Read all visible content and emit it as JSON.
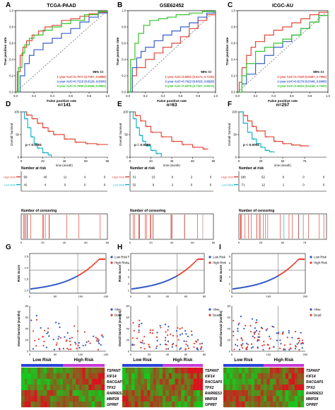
{
  "colors": {
    "year1": "#e0483a",
    "year2": "#3a5fc8",
    "year3": "#35c42c",
    "high_risk": "#e0483a",
    "low_risk": "#19b6c9",
    "low_risk_dot": "#2a53c4",
    "dead_dot": "#e23a2a",
    "heat_low": "#1cc81c",
    "heat_high": "#d81c1c",
    "bar_low": "#2a44d8",
    "bar_high": "#c83ad8"
  },
  "roc_panels": [
    {
      "letter": "A",
      "title": "TCGA-PAAD",
      "xlabel": "False positive rate",
      "ylabel": "True positive rate",
      "ci_header": "95% CI",
      "ticks": [
        "0.0",
        "0.2",
        "0.4",
        "0.6",
        "0.8",
        "1.0"
      ],
      "auc": [
        "1-year AUC=0.7977 (0.7067, 0.8888)",
        "2-year AUC=0.7215 (0.6129, 0.8300)",
        "3-year AUC=0.7699 (0.6546, 0.8851)"
      ]
    },
    {
      "letter": "B",
      "title": "GSE62452",
      "xlabel": "False positive rate",
      "ylabel": "True positive rate",
      "ci_header": "95% CI",
      "ticks": [
        "0.0",
        "0.2",
        "0.4",
        "0.6",
        "0.8",
        "1.0"
      ],
      "auc": [
        "1-year AUC=0.6691 (0.4171, 0.7215)",
        "2-year AUC=0.7422 (0.6015, 0.8829)",
        "3-year AUC=0.8379 (0.7227, 0.9574)"
      ]
    },
    {
      "letter": "C",
      "title": "ICGC-AU",
      "xlabel": "False positive rate",
      "ylabel": "True positive rate",
      "ci_header": "95% CI",
      "ticks": [
        "0.0",
        "0.2",
        "0.4",
        "0.6",
        "0.8",
        "1.0"
      ],
      "auc": [
        "1-year AUC=0.7240 (0.6487, 0.7994)",
        "2-year AUC=0.6170 (0.5346, 0.6995)",
        "3-year AUC=0.6424 (0.5246, 0.7600)"
      ]
    }
  ],
  "km_panels": [
    {
      "letter": "D",
      "n_label": "n=141",
      "ylabel": "Overall Survival",
      "xlabel": "time (month)",
      "p_label": "p < 0.0001",
      "x_ticks": [
        "0",
        "20",
        "40",
        "60",
        "80"
      ],
      "y_ticks": [
        "0",
        "50",
        "100"
      ],
      "risk_title": "Number at risk",
      "risk_groups": [
        "High Risk",
        "Low Risk"
      ],
      "risk_high": [
        "99",
        "40",
        "11",
        "4",
        "0"
      ],
      "risk_low": [
        "42",
        "4",
        "0",
        "0",
        "0"
      ],
      "censor_title": "Number of censoring",
      "censor_x_ticks": [
        "0",
        "20",
        "40",
        "60",
        "80"
      ]
    },
    {
      "letter": "E",
      "n_label": "n=63",
      "ylabel": "Overall Survival",
      "xlabel": "time (month)",
      "p_label": "p = 0.0089",
      "x_ticks": [
        "0",
        "20",
        "40",
        "60",
        "80"
      ],
      "y_ticks": [
        "0",
        "50",
        "100"
      ],
      "risk_title": "Number at risk",
      "risk_groups": [
        "High Risk",
        "Low Risk"
      ],
      "risk_high": [
        "31",
        "15",
        "6",
        "2",
        "0"
      ],
      "risk_low": [
        "32",
        "9",
        "2",
        "0",
        "0"
      ],
      "censor_title": "Number of censoring",
      "censor_x_ticks": [
        "0",
        "20",
        "40",
        "60",
        "80"
      ]
    },
    {
      "letter": "F",
      "n_label": "n=257",
      "ylabel": "Overall Survival",
      "xlabel": "time (month)",
      "p_label": "p < 0.0001",
      "x_ticks": [
        "0",
        "25",
        "50",
        "75"
      ],
      "y_ticks": [
        "0",
        "50",
        "100"
      ],
      "risk_title": "Number at risk",
      "risk_groups": [
        "High Risk",
        "Low Risk"
      ],
      "risk_high": [
        "186",
        "52",
        "6",
        "0",
        "0"
      ],
      "risk_low": [
        "71",
        "12",
        "1",
        "0",
        "0"
      ],
      "censor_title": "Number of censoring",
      "censor_x_ticks": [
        "0",
        "25",
        "50",
        "75"
      ]
    }
  ],
  "risk_panels": [
    {
      "letter": "G",
      "score_label": "Risk Score",
      "os_label": "Overall Survival (months)",
      "legend_score": [
        "Low Risk",
        "High Risk"
      ],
      "legend_os": [
        "Alive",
        "Dead"
      ],
      "x_ticks": [
        "0",
        "50",
        "100",
        "150"
      ],
      "score_ticks": [
        "1.0",
        "1.5",
        "2.0",
        "2.5"
      ],
      "os_ticks": [
        "0",
        "20",
        "40",
        "60",
        "80"
      ],
      "bar_labels": [
        "Low Risk",
        "High Risk"
      ],
      "genes": [
        "TSPAN7",
        "KIF14",
        "RACGAP1",
        "TPX2",
        "RARRES3",
        "MMP28",
        "GPR87"
      ]
    },
    {
      "letter": "H",
      "score_label": "Risk Score",
      "os_label": "Overall Survival (months)",
      "legend_score": [
        "Low Risk",
        "High Risk"
      ],
      "legend_os": [
        "Alive",
        "Dead"
      ],
      "x_ticks": [
        "0",
        "20",
        "40",
        "60",
        "80"
      ],
      "score_ticks": [
        "1",
        "2",
        "3",
        "4",
        "5",
        "6"
      ],
      "os_ticks": [
        "0",
        "20",
        "40",
        "60",
        "80"
      ],
      "bar_labels": [
        "Low Risk",
        "High Risk"
      ],
      "genes": [
        "TSPAN7",
        "KIF14",
        "RACGAP1",
        "TPX2",
        "RARRES3",
        "MMP28",
        "GPR87"
      ]
    },
    {
      "letter": "I",
      "score_label": "Risk Score",
      "os_label": "Overall Survival (months)",
      "legend_score": [
        "Low Risk",
        "High Risk"
      ],
      "legend_os": [
        "Alive",
        "Dead"
      ],
      "x_ticks": [
        "0",
        "100",
        "200"
      ],
      "score_ticks": [
        "1",
        "2",
        "3",
        "4",
        "5",
        "6"
      ],
      "os_ticks": [
        "0",
        "20",
        "40",
        "60",
        "80"
      ],
      "bar_labels": [
        "Low Risk",
        "High Risk"
      ],
      "genes": [
        "TSPAN7",
        "KIF14",
        "RACGAP1",
        "TPX2",
        "RARRES3",
        "MMP28",
        "GPR87"
      ]
    }
  ],
  "chart_data": [
    {
      "type": "line",
      "panel": "A",
      "title": "TCGA-PAAD",
      "xlabel": "False positive rate",
      "ylabel": "True positive rate",
      "xlim": [
        0,
        1
      ],
      "ylim": [
        0,
        1
      ],
      "series": [
        {
          "name": "1-year AUC=0.7977 (0.7067, 0.8888)",
          "x": [
            0,
            0.02,
            0.05,
            0.08,
            0.12,
            0.18,
            0.25,
            0.32,
            0.4,
            0.5,
            0.6,
            0.7,
            0.8,
            0.9,
            1.0
          ],
          "y": [
            0,
            0.25,
            0.45,
            0.55,
            0.63,
            0.7,
            0.75,
            0.8,
            0.82,
            0.88,
            0.9,
            0.93,
            0.96,
            0.98,
            1.0
          ]
        },
        {
          "name": "2-year AUC=0.7215 (0.6129, 0.8300)",
          "x": [
            0,
            0.05,
            0.1,
            0.15,
            0.2,
            0.3,
            0.4,
            0.5,
            0.6,
            0.7,
            0.8,
            0.9,
            1.0
          ],
          "y": [
            0,
            0.2,
            0.35,
            0.45,
            0.52,
            0.6,
            0.66,
            0.72,
            0.78,
            0.86,
            0.92,
            0.97,
            1.0
          ]
        },
        {
          "name": "3-year AUC=0.7699 (0.6546, 0.8851)",
          "x": [
            0,
            0.03,
            0.07,
            0.1,
            0.15,
            0.2,
            0.3,
            0.4,
            0.5,
            0.6,
            0.75,
            0.9,
            1.0
          ],
          "y": [
            0,
            0.3,
            0.48,
            0.58,
            0.66,
            0.7,
            0.76,
            0.8,
            0.84,
            0.88,
            0.95,
            0.99,
            1.0
          ]
        }
      ]
    },
    {
      "type": "line",
      "panel": "B",
      "title": "GSE62452",
      "xlabel": "False positive rate",
      "ylabel": "True positive rate",
      "xlim": [
        0,
        1
      ],
      "ylim": [
        0,
        1
      ],
      "series": [
        {
          "name": "1-year AUC=0.6691 (0.4171, 0.7215)",
          "x": [
            0,
            0.05,
            0.1,
            0.2,
            0.3,
            0.4,
            0.5,
            0.6,
            0.7,
            0.8,
            0.9,
            1.0
          ],
          "y": [
            0,
            0.2,
            0.3,
            0.4,
            0.48,
            0.55,
            0.6,
            0.68,
            0.78,
            0.88,
            0.95,
            1.0
          ]
        },
        {
          "name": "2-year AUC=0.7422 (0.6015, 0.8829)",
          "x": [
            0,
            0.05,
            0.1,
            0.15,
            0.2,
            0.3,
            0.4,
            0.5,
            0.6,
            0.7,
            0.8,
            0.9,
            1.0
          ],
          "y": [
            0,
            0.3,
            0.42,
            0.5,
            0.55,
            0.63,
            0.7,
            0.75,
            0.8,
            0.85,
            0.92,
            0.97,
            1.0
          ]
        },
        {
          "name": "3-year AUC=0.8379 (0.7227, 0.9574)",
          "x": [
            0,
            0.03,
            0.08,
            0.12,
            0.18,
            0.25,
            0.35,
            0.45,
            0.55,
            0.7,
            0.85,
            1.0
          ],
          "y": [
            0,
            0.4,
            0.6,
            0.72,
            0.82,
            0.88,
            0.9,
            0.92,
            0.95,
            0.97,
            0.99,
            1.0
          ]
        }
      ]
    },
    {
      "type": "line",
      "panel": "C",
      "title": "ICGC-AU",
      "xlabel": "False positive rate",
      "ylabel": "True positive rate",
      "xlim": [
        0,
        1
      ],
      "ylim": [
        0,
        1
      ],
      "series": [
        {
          "name": "1-year AUC=0.7240 (0.6487, 0.7994)",
          "x": [
            0,
            0.02,
            0.05,
            0.1,
            0.15,
            0.2,
            0.3,
            0.4,
            0.5,
            0.6,
            0.7,
            0.8,
            0.9,
            1.0
          ],
          "y": [
            0,
            0.12,
            0.3,
            0.45,
            0.55,
            0.62,
            0.7,
            0.76,
            0.8,
            0.85,
            0.9,
            0.95,
            0.98,
            1.0
          ]
        },
        {
          "name": "2-year AUC=0.6170 (0.5346, 0.6995)",
          "x": [
            0,
            0.05,
            0.1,
            0.2,
            0.3,
            0.4,
            0.5,
            0.6,
            0.7,
            0.8,
            0.9,
            1.0
          ],
          "y": [
            0,
            0.1,
            0.22,
            0.35,
            0.45,
            0.55,
            0.62,
            0.7,
            0.78,
            0.86,
            0.94,
            1.0
          ]
        },
        {
          "name": "3-year AUC=0.6424 (0.5246, 0.7600)",
          "x": [
            0,
            0.05,
            0.1,
            0.2,
            0.3,
            0.4,
            0.5,
            0.6,
            0.7,
            0.8,
            0.9,
            1.0
          ],
          "y": [
            0,
            0.2,
            0.35,
            0.5,
            0.55,
            0.6,
            0.65,
            0.7,
            0.78,
            0.86,
            0.94,
            1.0
          ]
        }
      ]
    },
    {
      "type": "line",
      "panel": "D",
      "xlabel": "time (month)",
      "ylabel": "Overall Survival",
      "xlim": [
        0,
        80
      ],
      "ylim": [
        0,
        100
      ],
      "series": [
        {
          "name": "High Risk",
          "x": [
            0,
            5,
            10,
            15,
            20,
            25,
            30,
            40,
            50,
            60,
            70,
            80
          ],
          "y": [
            100,
            93,
            85,
            75,
            65,
            57,
            50,
            40,
            33,
            30,
            28,
            27
          ]
        },
        {
          "name": "Low Risk",
          "x": [
            0,
            3,
            6,
            9,
            12,
            15,
            20,
            25,
            28
          ],
          "y": [
            100,
            85,
            65,
            45,
            30,
            20,
            10,
            5,
            0
          ]
        }
      ]
    },
    {
      "type": "line",
      "panel": "E",
      "xlabel": "time (month)",
      "ylabel": "Overall Survival",
      "xlim": [
        0,
        80
      ],
      "ylim": [
        0,
        100
      ],
      "series": [
        {
          "name": "High Risk",
          "x": [
            0,
            5,
            10,
            15,
            20,
            30,
            40,
            50,
            60,
            70,
            75
          ],
          "y": [
            100,
            92,
            80,
            68,
            55,
            45,
            35,
            28,
            22,
            18,
            18
          ]
        },
        {
          "name": "Low Risk",
          "x": [
            0,
            3,
            6,
            9,
            12,
            15,
            20,
            25,
            30
          ],
          "y": [
            100,
            85,
            65,
            48,
            35,
            25,
            15,
            8,
            0
          ]
        }
      ]
    },
    {
      "type": "line",
      "panel": "F",
      "xlabel": "time (month)",
      "ylabel": "Overall Survival",
      "xlim": [
        0,
        100
      ],
      "ylim": [
        0,
        100
      ],
      "series": [
        {
          "name": "High Risk",
          "x": [
            0,
            5,
            10,
            15,
            20,
            30,
            40,
            50,
            60,
            70,
            80
          ],
          "y": [
            100,
            92,
            80,
            68,
            58,
            45,
            35,
            30,
            27,
            25,
            25
          ]
        },
        {
          "name": "Low Risk",
          "x": [
            0,
            5,
            10,
            15,
            20,
            25,
            30,
            35,
            40
          ],
          "y": [
            100,
            75,
            55,
            40,
            30,
            22,
            15,
            12,
            10
          ]
        }
      ]
    }
  ]
}
